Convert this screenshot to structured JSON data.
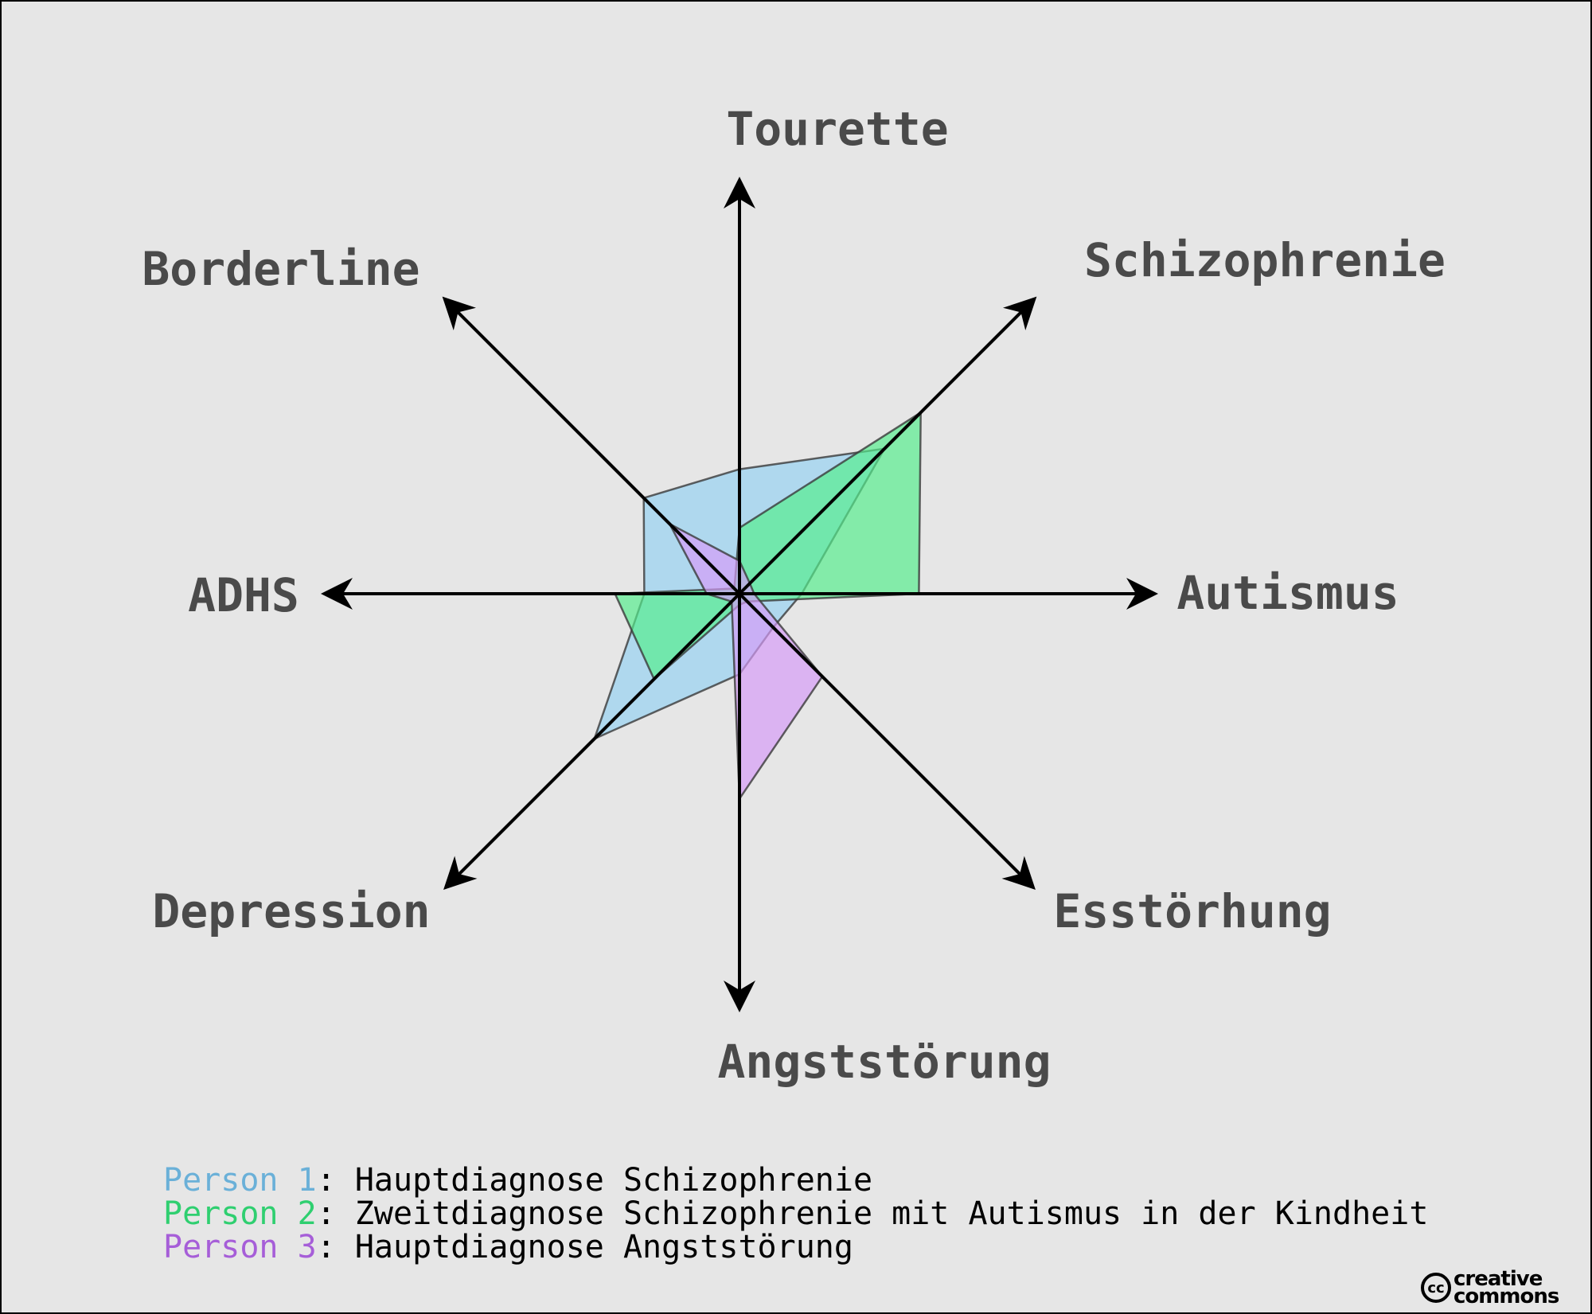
{
  "chart_data": {
    "type": "radar",
    "axes": [
      "Tourette",
      "Schizophrenie",
      "Autismus",
      "Esstörhung",
      "Angststörung",
      "Depression",
      "ADHS",
      "Borderline"
    ],
    "rmax": 1.0,
    "series": [
      {
        "name": "Person 1",
        "color": "#95d2f2",
        "stroke": "#5a9fc4",
        "values": [
          0.34,
          0.56,
          0.17,
          0.13,
          0.22,
          0.56,
          0.26,
          0.37
        ]
      },
      {
        "name": "Person 2",
        "color": "#54ee8c",
        "stroke": "#2cc166",
        "values": [
          0.18,
          0.7,
          0.49,
          0.03,
          0.03,
          0.33,
          0.34,
          0.02
        ]
      },
      {
        "name": "Person 3",
        "color": "#d69bf8",
        "stroke": "#a25ed6",
        "values": [
          0.09,
          0.04,
          0.04,
          0.32,
          0.56,
          0.03,
          0.09,
          0.27
        ]
      }
    ]
  },
  "legend": [
    {
      "name": "Person 1",
      "text": ": Hauptdiagnose Schizophrenie",
      "color": "#6ab0d8"
    },
    {
      "name": "Person 2",
      "text": ": Zweitdiagnose Schizophrenie mit Autismus in der Kindheit",
      "color": "#2fcf70"
    },
    {
      "name": "Person 3",
      "text": ": Hauptdiagnose Angststörung",
      "color": "#a65ed8"
    }
  ],
  "logo": {
    "circle": "cc",
    "line1": "creative",
    "line2": "commons"
  }
}
